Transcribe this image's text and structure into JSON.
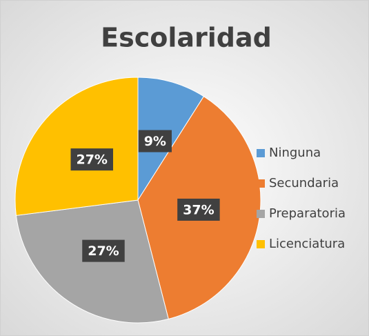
{
  "chart_data": {
    "type": "pie",
    "title": "Escolaridad",
    "categories": [
      "Ninguna",
      "Secundaria",
      "Preparatoria",
      "Licenciatura"
    ],
    "values": [
      9,
      37,
      27,
      27
    ],
    "value_labels": [
      "9%",
      "37%",
      "27%",
      "27%"
    ],
    "colors": [
      "#5b9bd5",
      "#ed7d31",
      "#a5a5a5",
      "#ffc000"
    ],
    "legend": "right"
  }
}
